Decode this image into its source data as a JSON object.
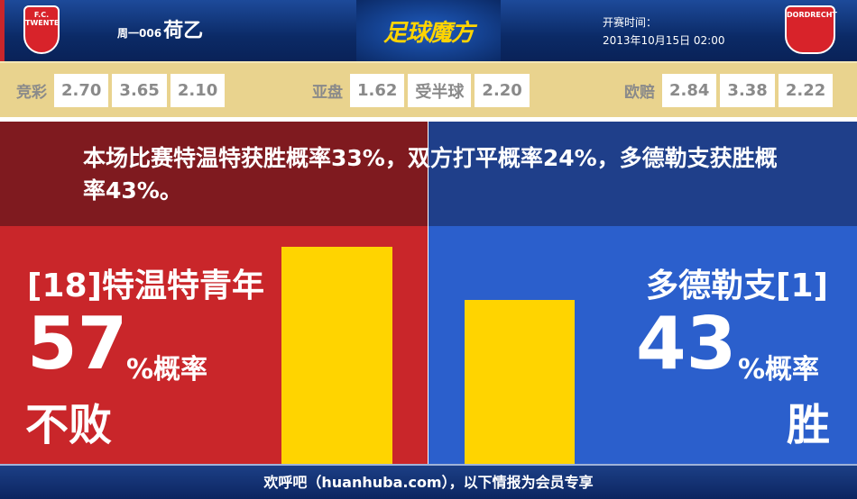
{
  "header": {
    "home_logo_text": "F.C. TWENTE",
    "away_logo_text": "DORDRECHT",
    "match_code": "周一006",
    "league": "荷乙",
    "brand": "足球魔方",
    "kickoff_label": "开赛时间：",
    "kickoff_time": "2013年10月15日 02:00"
  },
  "odds": {
    "jingcai": {
      "label": "竞彩",
      "values": [
        "2.70",
        "3.65",
        "2.10"
      ]
    },
    "asian": {
      "label": "亚盘",
      "values": [
        "1.62",
        "受半球",
        "2.20"
      ]
    },
    "euro": {
      "label": "欧赔",
      "values": [
        "2.84",
        "3.38",
        "2.22"
      ]
    }
  },
  "summary": "本场比赛特温特获胜概率33%，双方打平概率24%，多德勒支获胜概率43%。",
  "home": {
    "name": "[18]特温特青年",
    "prob": "57",
    "prob_unit": "%概率",
    "result": "不败",
    "bar_value": 57,
    "color": "#c9262a"
  },
  "away": {
    "name": "多德勒支[1]",
    "prob": "43",
    "prob_unit": "%概率",
    "result": "胜",
    "bar_value": 43,
    "color": "#2b5fcc"
  },
  "bar_color": "#ffd400",
  "footer": "欢呼吧（huanhuba.com），以下情报为会员专享"
}
